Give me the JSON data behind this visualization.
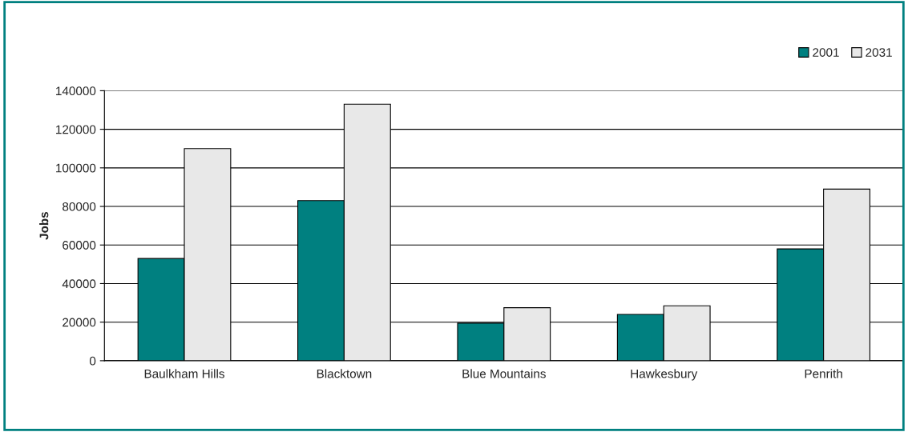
{
  "chart_data": {
    "type": "bar",
    "ylabel": "Jobs",
    "categories": [
      "Baulkham Hills",
      "Blacktown",
      "Blue Mountains",
      "Hawkesbury",
      "Penrith"
    ],
    "series": [
      {
        "name": "2001",
        "color": "#008080",
        "values": [
          53000,
          83000,
          19500,
          24000,
          58000
        ]
      },
      {
        "name": "2031",
        "color": "#e8e8e8",
        "values": [
          110000,
          133000,
          27500,
          28500,
          89000
        ]
      }
    ],
    "ylim": [
      0,
      140000
    ],
    "yticks": [
      0,
      20000,
      40000,
      60000,
      80000,
      100000,
      120000,
      140000
    ],
    "grid": "y",
    "legend": "top right"
  }
}
